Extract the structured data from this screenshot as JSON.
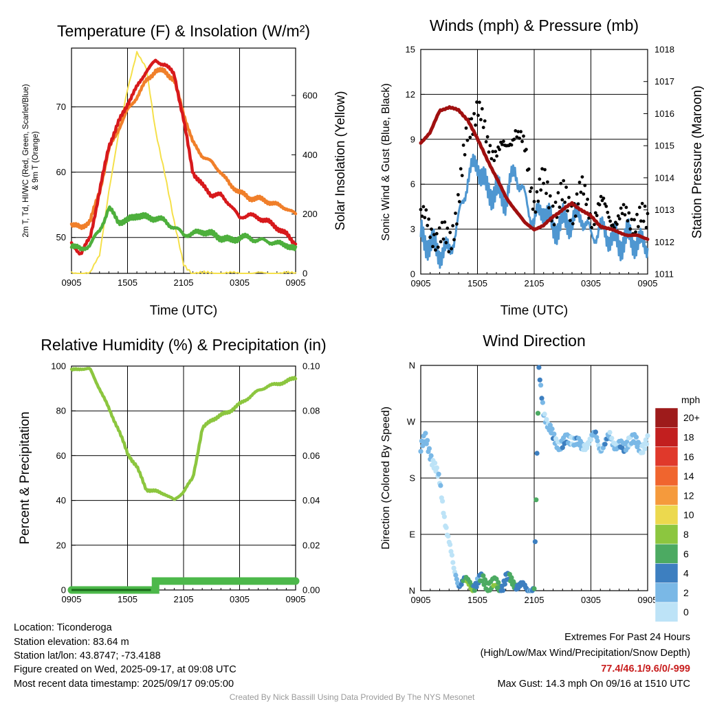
{
  "colors": {
    "temperature": "#d7191c",
    "dewpoint": "#4daf3c",
    "heat_index": "#1f78d1",
    "temp_9m": "#f07f2a",
    "solar": "#f5e04a",
    "wind": "#4f97d1",
    "gust": "#000000",
    "pressure": "#a01010",
    "rh": "#8cc63f",
    "precip": "#4cb84a",
    "extremes": "#c81e1e",
    "credit": "#999999"
  },
  "panels": {
    "temperature": {
      "title": "Temperature (F) & Insolation (W/m²)",
      "ylabel_left_line1": "2m T, Td, HI/WC (Red, Green, Scarlet/Blue)",
      "ylabel_left_line2": "& 9m T (Orange)",
      "ylabel_right": "Solar Insolation (Yellow)",
      "xlabel": "Time (UTC)"
    },
    "winds": {
      "title": "Winds (mph) & Pressure (mb)",
      "ylabel_left": "Sonic Wind & Gust (Blue, Black)",
      "ylabel_right": "Station Pressure (Maroon)",
      "xlabel": "Time (UTC)"
    },
    "humidity": {
      "title": "Relative Humidity (%) & Precipitation (in)",
      "ylabel_left": "Percent & Precipitation"
    },
    "direction": {
      "title": "Wind Direction",
      "ylabel_left": "Direction (Colored By Speed)",
      "colorbar_title": "mph",
      "colorbar_labels": [
        "20+",
        "18",
        "16",
        "14",
        "12",
        "10",
        "8",
        "6",
        "4",
        "2",
        "0"
      ],
      "colorbar_colors": [
        "#9e1b1b",
        "#c21f1f",
        "#e0392b",
        "#f0652e",
        "#f59a3c",
        "#ecd94e",
        "#8cc63f",
        "#4caa62",
        "#3d7fc0",
        "#7ab8e6",
        "#bde3f7"
      ]
    }
  },
  "chart_data": [
    {
      "type": "line",
      "panel": "temperature",
      "x_ticks": [
        "0905",
        "1505",
        "2105",
        "0305",
        "0905"
      ],
      "y_left_ticks": [
        "50",
        "60",
        "70"
      ],
      "y_left_range": [
        44.5,
        79
      ],
      "y_right_ticks": [
        "0",
        "200",
        "400",
        "600"
      ],
      "y_right_range": [
        0,
        760
      ],
      "x_hours": [
        0,
        1,
        2,
        3,
        4,
        5,
        6,
        7,
        8,
        9,
        10,
        11,
        12,
        13,
        14,
        15,
        16,
        17,
        18,
        19,
        20,
        21,
        22,
        23,
        24
      ],
      "series": [
        {
          "name": "2m T",
          "axis": "left",
          "values": [
            49,
            47.5,
            50,
            57,
            64,
            67.5,
            70.5,
            73,
            75.5,
            77,
            76.5,
            75,
            68,
            60,
            58,
            56.5,
            56.5,
            55,
            53,
            53.5,
            53,
            52.5,
            51.5,
            50.5,
            49
          ]
        },
        {
          "name": "9m T",
          "axis": "left",
          "values": [
            52,
            51.5,
            52.5,
            57,
            63.5,
            66.5,
            69.5,
            71.5,
            74,
            75.5,
            75.5,
            74,
            69,
            64.5,
            62.5,
            61.5,
            60,
            58,
            57,
            56,
            56,
            55.5,
            55,
            54.5,
            53.5
          ]
        },
        {
          "name": "Td",
          "axis": "left",
          "values": [
            49,
            48,
            49,
            51,
            54.5,
            52.5,
            52.5,
            53.5,
            53,
            53,
            52.5,
            51.5,
            50.5,
            50.5,
            51,
            50.5,
            50,
            49.5,
            50,
            50,
            49.5,
            49.5,
            49,
            49,
            48
          ]
        },
        {
          "name": "Solar",
          "axis": "right",
          "values": [
            0,
            0,
            0,
            60,
            280,
            460,
            620,
            750,
            690,
            480,
            340,
            170,
            30,
            0,
            0,
            0,
            0,
            0,
            0,
            0,
            0,
            0,
            0,
            0,
            0
          ]
        }
      ]
    },
    {
      "type": "line",
      "panel": "winds",
      "x_ticks": [
        "0905",
        "1505",
        "2105",
        "0305",
        "0905"
      ],
      "y_left_ticks": [
        "0",
        "3",
        "6",
        "9",
        "12",
        "15"
      ],
      "y_left_range": [
        0,
        15
      ],
      "y_right_ticks": [
        "1011",
        "1012",
        "1013",
        "1014",
        "1015",
        "1016",
        "1017",
        "1018"
      ],
      "y_right_range": [
        1011,
        1018
      ],
      "x_hours": [
        0,
        1,
        2,
        3,
        4,
        5,
        6,
        7,
        8,
        9,
        10,
        11,
        12,
        13,
        14,
        15,
        16,
        17,
        18,
        19,
        20,
        21,
        22,
        23,
        24
      ],
      "series": [
        {
          "name": "Sonic Wind",
          "axis": "left",
          "values": [
            2.5,
            2,
            1.5,
            1.5,
            3.5,
            6.5,
            7.5,
            5.5,
            5.5,
            5,
            7,
            5,
            3.5,
            4.5,
            3,
            3.5,
            3.5,
            4,
            2.5,
            3,
            2.5,
            2,
            2.5,
            2,
            2
          ]
        },
        {
          "name": "Gust",
          "axis": "left",
          "values": [
            3.8,
            3,
            2.5,
            2,
            5,
            9.5,
            11.5,
            8.5,
            8.5,
            8,
            10,
            8,
            5,
            6,
            4.5,
            5,
            4.5,
            5.5,
            4,
            4.5,
            4,
            3.5,
            4,
            3.5,
            3.5
          ]
        },
        {
          "name": "Station Pressure",
          "axis": "right",
          "values": [
            1015.1,
            1015.4,
            1016.1,
            1016.2,
            1016.1,
            1015.8,
            1015.2,
            1014.6,
            1014,
            1013.4,
            1013,
            1012.6,
            1012.4,
            1012.5,
            1012.8,
            1013,
            1013.2,
            1013,
            1012.8,
            1012.5,
            1012.4,
            1012.3,
            1012.2,
            1012.2,
            1012.1
          ]
        }
      ]
    },
    {
      "type": "line",
      "panel": "humidity",
      "x_ticks": [
        "0905",
        "1505",
        "2105",
        "0305",
        "0905"
      ],
      "y_left_ticks": [
        "0",
        "20",
        "40",
        "60",
        "80",
        "100"
      ],
      "y_left_range": [
        0,
        100
      ],
      "y_right_ticks": [
        "0.00",
        "0.02",
        "0.04",
        "0.06",
        "0.08",
        "0.10"
      ],
      "y_right_range": [
        0,
        0.1
      ],
      "x_hours": [
        0,
        1,
        2,
        3,
        4,
        5,
        6,
        7,
        8,
        9,
        10,
        11,
        12,
        13,
        14,
        15,
        16,
        17,
        18,
        19,
        20,
        21,
        22,
        23,
        24
      ],
      "series": [
        {
          "name": "RH",
          "axis": "left",
          "values": [
            98,
            99,
            98.5,
            90,
            81,
            72,
            61,
            55,
            45,
            44,
            43,
            40,
            44,
            50,
            72,
            76,
            78,
            80,
            83,
            86,
            89,
            91,
            92,
            93,
            95
          ]
        },
        {
          "name": "Precipitation",
          "axis": "right",
          "values": [
            0,
            0,
            0,
            0,
            0,
            0,
            0,
            0,
            0,
            0.004,
            0.004,
            0.004,
            0.004,
            0.004,
            0.004,
            0.004,
            0.004,
            0.004,
            0.004,
            0.004,
            0.004,
            0.004,
            0.004,
            0.004,
            0.004
          ]
        }
      ]
    },
    {
      "type": "scatter",
      "panel": "direction",
      "x_ticks": [
        "0905",
        "1505",
        "2105",
        "0305",
        "0905"
      ],
      "y_ticks": [
        "N",
        "E",
        "S",
        "W",
        "N"
      ],
      "y_range_deg": [
        0,
        360
      ],
      "x_hours": [
        0,
        0.5,
        1,
        1.5,
        2,
        2.5,
        3,
        3.5,
        4,
        4.5,
        5,
        5.5,
        6,
        6.5,
        7,
        7.5,
        8,
        8.5,
        9,
        9.5,
        10,
        10.5,
        11,
        11.5,
        12,
        12.5,
        13,
        13.5,
        14,
        14.5,
        15,
        15.5,
        16,
        16.5,
        17,
        17.5,
        18,
        18.5,
        19,
        19.5,
        20,
        20.5,
        21,
        21.5,
        22,
        22.5,
        23,
        23.5,
        24
      ],
      "direction_deg": [
        230,
        240,
        220,
        200,
        170,
        120,
        80,
        30,
        12,
        18,
        10,
        8,
        14,
        16,
        12,
        10,
        8,
        5,
        20,
        15,
        12,
        8,
        4,
        2,
        3,
        350,
        290,
        260,
        245,
        238,
        232,
        240,
        246,
        236,
        228,
        236,
        240,
        250,
        228,
        232,
        248,
        236,
        230,
        226,
        244,
        240,
        230,
        232,
        238
      ],
      "speed_mph": [
        3,
        2,
        3,
        2,
        1,
        1,
        1,
        0,
        4,
        6,
        8,
        8,
        4,
        6,
        7,
        8,
        7,
        6,
        5,
        6,
        7,
        5,
        4,
        5,
        6,
        5,
        3,
        2,
        3,
        2,
        4,
        3,
        2,
        4,
        2,
        1,
        2,
        3,
        2,
        4,
        2,
        2,
        3,
        4,
        2,
        3,
        3,
        1,
        1
      ]
    }
  ],
  "info": {
    "location": "Location: Ticonderoga",
    "elevation": "Station elevation: 83.64 m",
    "latlon": "Station lat/lon: 43.8747; -73.4188",
    "created": "Figure created on Wed, 2025-09-17, at 09:08 UTC",
    "recent": "Most recent data timestamp: 2025/09/17 09:05:00"
  },
  "extremes": {
    "title": "Extremes For Past 24 Hours",
    "subtitle": "(High/Low/Max Wind/Precipitation/Snow Depth)",
    "values": "77.4/46.1/9.6/0/-999",
    "gust": "Max Gust: 14.3 mph On 09/16 at 1510 UTC"
  },
  "credit": "Created By Nick Bassill Using Data Provided By The NYS Mesonet"
}
